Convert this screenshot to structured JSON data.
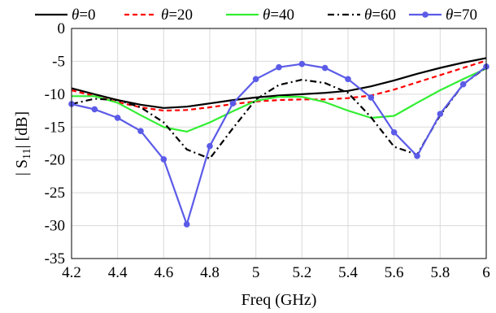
{
  "chart_data": {
    "type": "line",
    "xlabel": "Freq (GHz)",
    "ylabel_parts": {
      "pre": "| S",
      "sub": "11",
      "post": "| [dB]"
    },
    "xlim": [
      4.2,
      6.0
    ],
    "ylim": [
      -35,
      0
    ],
    "xticks": [
      "4.2",
      "4.4",
      "4.6",
      "4.8",
      "5",
      "5.2",
      "5.4",
      "5.6",
      "5.8",
      "6"
    ],
    "yticks": [
      "0",
      "-5",
      "-10",
      "-15",
      "-20",
      "-25",
      "-30",
      "-35"
    ],
    "grid": true,
    "legend_position": "top",
    "series": [
      {
        "name": "θ=0",
        "greek": "θ",
        "val": "=0",
        "color": "#000000",
        "dash": "solid",
        "marker": false,
        "x": [
          4.2,
          4.3,
          4.4,
          4.5,
          4.6,
          4.7,
          4.8,
          4.9,
          5.0,
          5.1,
          5.2,
          5.3,
          5.4,
          5.5,
          5.6,
          5.7,
          5.8,
          5.9,
          6.0
        ],
        "y": [
          -9.1,
          -10.0,
          -10.9,
          -11.6,
          -12.1,
          -11.9,
          -11.4,
          -10.9,
          -10.5,
          -10.2,
          -10.0,
          -9.8,
          -9.5,
          -8.8,
          -7.9,
          -6.9,
          -6.0,
          -5.2,
          -4.5
        ]
      },
      {
        "name": "θ=20",
        "greek": "θ",
        "val": "=20",
        "color": "#ff0000",
        "dash": "dashed",
        "marker": false,
        "x": [
          4.2,
          4.3,
          4.4,
          4.5,
          4.6,
          4.7,
          4.8,
          4.9,
          5.0,
          5.1,
          5.2,
          5.3,
          5.4,
          5.5,
          5.6,
          5.7,
          5.8,
          5.9,
          6.0
        ],
        "y": [
          -9.4,
          -10.3,
          -11.2,
          -12.0,
          -12.5,
          -12.4,
          -12.0,
          -11.5,
          -11.1,
          -10.9,
          -10.8,
          -10.8,
          -10.6,
          -10.2,
          -9.3,
          -8.2,
          -7.1,
          -6.0,
          -4.9
        ]
      },
      {
        "name": "θ=40",
        "greek": "θ",
        "val": "=40",
        "color": "#33ee33",
        "dash": "solid",
        "marker": false,
        "x": [
          4.2,
          4.3,
          4.4,
          4.5,
          4.6,
          4.7,
          4.8,
          4.9,
          5.0,
          5.1,
          5.2,
          5.3,
          5.4,
          5.5,
          5.6,
          5.7,
          5.8,
          5.9,
          6.0
        ],
        "y": [
          -10.3,
          -10.3,
          -11.3,
          -13.2,
          -15.0,
          -15.7,
          -14.3,
          -12.6,
          -11.0,
          -10.4,
          -10.4,
          -11.2,
          -12.5,
          -13.6,
          -13.3,
          -11.3,
          -9.4,
          -7.7,
          -6.1
        ]
      },
      {
        "name": "θ=60",
        "greek": "θ",
        "val": "=60",
        "color": "#000000",
        "dash": "dashdot",
        "marker": false,
        "x": [
          4.2,
          4.3,
          4.4,
          4.5,
          4.6,
          4.7,
          4.8,
          4.9,
          5.0,
          5.1,
          5.2,
          5.3,
          5.4,
          5.5,
          5.6,
          5.7,
          5.8,
          5.9,
          6.0
        ],
        "y": [
          -11.5,
          -10.7,
          -10.9,
          -12.0,
          -14.3,
          -18.4,
          -19.8,
          -15.2,
          -10.8,
          -8.6,
          -7.8,
          -8.3,
          -9.8,
          -13.5,
          -18.0,
          -19.2,
          -13.2,
          -8.5,
          -5.9
        ]
      },
      {
        "name": "θ=70",
        "greek": "θ",
        "val": "=70",
        "color": "#5b5be8",
        "dash": "solid",
        "marker": true,
        "x": [
          4.2,
          4.3,
          4.4,
          4.5,
          4.6,
          4.7,
          4.8,
          4.9,
          5.0,
          5.1,
          5.2,
          5.3,
          5.4,
          5.5,
          5.6,
          5.7,
          5.8,
          5.9,
          6.0
        ],
        "y": [
          -11.5,
          -12.3,
          -13.6,
          -15.6,
          -19.9,
          -29.8,
          -17.9,
          -11.4,
          -7.7,
          -5.9,
          -5.4,
          -6.0,
          -7.7,
          -10.5,
          -15.8,
          -19.4,
          -13.0,
          -8.5,
          -5.8
        ]
      }
    ]
  }
}
